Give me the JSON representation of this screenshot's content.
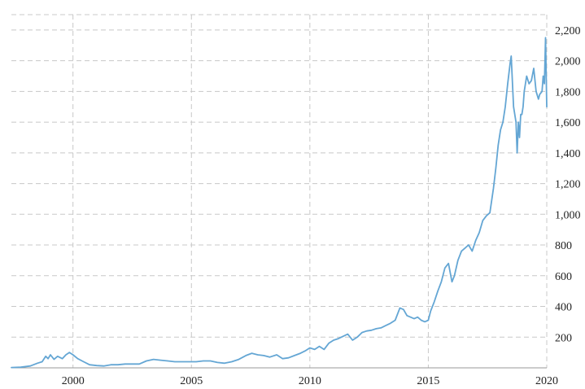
{
  "chart_data": {
    "type": "line",
    "title": "",
    "xlabel": "",
    "ylabel": "",
    "grid": true,
    "legend": "none",
    "xlim": [
      1997.4,
      2020.0
    ],
    "ylim": [
      0,
      2300
    ],
    "x_tick_values": [
      2000,
      2005,
      2010,
      2015,
      2020
    ],
    "x_tick_labels": [
      "2000",
      "2005",
      "2010",
      "2015",
      "2020"
    ],
    "y_tick_values": [
      200,
      400,
      600,
      800,
      1000,
      1200,
      1400,
      1600,
      1800,
      2000,
      2200
    ],
    "y_tick_labels": [
      "200",
      "400",
      "600",
      "800",
      "1,000",
      "1,200",
      "1,400",
      "1,600",
      "1,800",
      "2,000",
      "2,200"
    ],
    "series_color": "#64a6d4",
    "series": [
      {
        "x": [
          1997.4,
          1997.8,
          1998.2,
          1998.5,
          1998.7,
          1998.85,
          1998.95,
          1999.05,
          1999.2,
          1999.35,
          1999.55,
          1999.7,
          1999.85,
          2000.0,
          2000.2,
          2000.45,
          2000.7,
          2001.0,
          2001.3,
          2001.6,
          2001.9,
          2002.2,
          2002.5,
          2002.8,
          2003.1,
          2003.4,
          2003.7,
          2004.0,
          2004.3,
          2004.6,
          2004.9,
          2005.2,
          2005.5,
          2005.8,
          2006.1,
          2006.4,
          2006.7,
          2007.0,
          2007.3,
          2007.55,
          2007.8,
          2008.05,
          2008.3,
          2008.6,
          2008.85,
          2009.1,
          2009.35,
          2009.6,
          2009.8,
          2010.0,
          2010.2,
          2010.4,
          2010.6,
          2010.8,
          2011.0,
          2011.2,
          2011.4,
          2011.6,
          2011.8,
          2012.0,
          2012.2,
          2012.4,
          2012.6,
          2012.8,
          2013.0,
          2013.2,
          2013.4,
          2013.6,
          2013.8,
          2013.95,
          2014.1,
          2014.25,
          2014.4,
          2014.55,
          2014.7,
          2014.85,
          2015.0,
          2015.1,
          2015.25,
          2015.4,
          2015.55,
          2015.7,
          2015.85,
          2016.0,
          2016.1,
          2016.25,
          2016.4,
          2016.55,
          2016.7,
          2016.85,
          2017.0,
          2017.15,
          2017.3,
          2017.45,
          2017.6,
          2017.75,
          2017.85,
          2017.95,
          2018.05,
          2018.15,
          2018.25,
          2018.35,
          2018.45,
          2018.5,
          2018.6,
          2018.7,
          2018.75,
          2018.8,
          2018.85,
          2018.9,
          2018.95,
          2019.0,
          2019.05,
          2019.15,
          2019.25,
          2019.35,
          2019.45,
          2019.55,
          2019.65,
          2019.7,
          2019.8,
          2019.85,
          2019.9,
          2019.95,
          2020.0
        ],
        "y": [
          2,
          4,
          12,
          30,
          40,
          75,
          60,
          85,
          55,
          75,
          60,
          85,
          100,
          85,
          60,
          40,
          20,
          15,
          12,
          20,
          20,
          25,
          25,
          25,
          45,
          55,
          50,
          45,
          40,
          40,
          40,
          40,
          45,
          45,
          35,
          30,
          40,
          55,
          80,
          95,
          85,
          80,
          70,
          85,
          60,
          65,
          80,
          95,
          110,
          130,
          120,
          140,
          120,
          160,
          180,
          190,
          205,
          220,
          180,
          200,
          230,
          240,
          245,
          255,
          260,
          275,
          290,
          310,
          390,
          380,
          340,
          330,
          320,
          330,
          310,
          300,
          310,
          370,
          430,
          500,
          560,
          650,
          680,
          560,
          600,
          700,
          760,
          780,
          800,
          760,
          830,
          880,
          960,
          990,
          1010,
          1170,
          1300,
          1450,
          1550,
          1600,
          1700,
          1850,
          1980,
          2030,
          1700,
          1600,
          1400,
          1600,
          1500,
          1650,
          1650,
          1700,
          1800,
          1900,
          1850,
          1870,
          1950,
          1800,
          1750,
          1780,
          1800,
          1900,
          1850,
          2150,
          1700
        ]
      }
    ]
  }
}
